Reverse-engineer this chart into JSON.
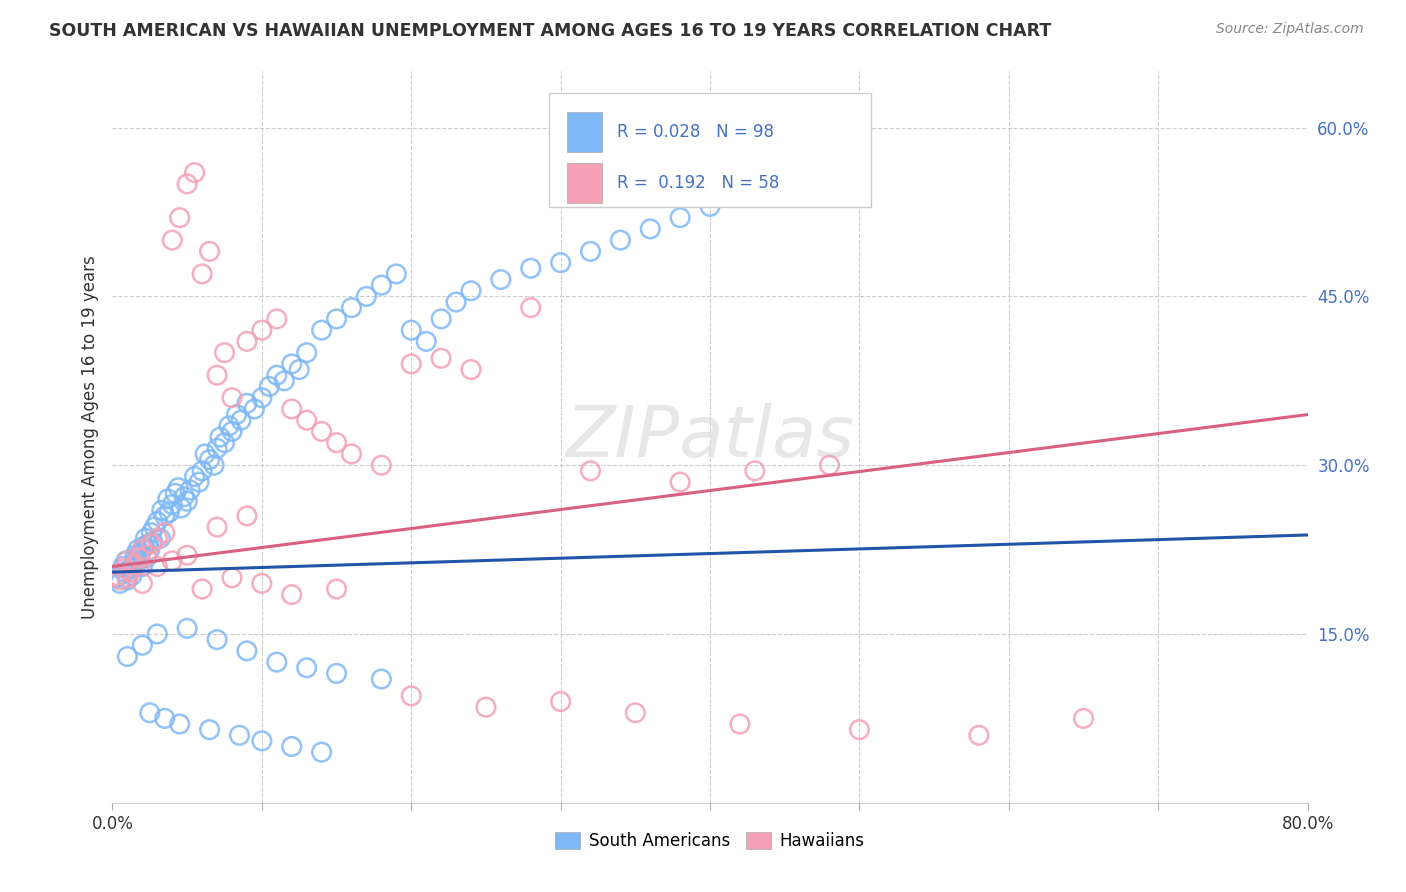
{
  "title": "SOUTH AMERICAN VS HAWAIIAN UNEMPLOYMENT AMONG AGES 16 TO 19 YEARS CORRELATION CHART",
  "source": "Source: ZipAtlas.com",
  "ylabel": "Unemployment Among Ages 16 to 19 years",
  "xlim": [
    0.0,
    0.8
  ],
  "ylim": [
    0.0,
    0.65
  ],
  "ytick_vals": [
    0.15,
    0.3,
    0.45,
    0.6
  ],
  "ytick_labels": [
    "15.0%",
    "30.0%",
    "45.0%",
    "60.0%"
  ],
  "R_blue": 0.028,
  "N_blue": 98,
  "R_pink": 0.192,
  "N_pink": 58,
  "blue_color": "#7EB8F7",
  "pink_color": "#F4A0B5",
  "blue_line_color": "#2255AA",
  "pink_line_color": "#D96080",
  "legend_label_blue": "South Americans",
  "legend_label_pink": "Hawaiians",
  "watermark": "ZIPatlas",
  "background_color": "#FFFFFF",
  "blue_line_x0": 0.0,
  "blue_line_y0": 0.205,
  "blue_line_x1": 0.8,
  "blue_line_y1": 0.238,
  "pink_line_x0": 0.0,
  "pink_line_y0": 0.21,
  "pink_line_x1": 0.8,
  "pink_line_y1": 0.345,
  "sa_x": [
    0.003,
    0.005,
    0.007,
    0.008,
    0.009,
    0.01,
    0.012,
    0.013,
    0.014,
    0.015,
    0.016,
    0.017,
    0.018,
    0.019,
    0.02,
    0.021,
    0.022,
    0.023,
    0.024,
    0.025,
    0.026,
    0.027,
    0.028,
    0.03,
    0.032,
    0.033,
    0.035,
    0.037,
    0.038,
    0.04,
    0.042,
    0.044,
    0.046,
    0.048,
    0.05,
    0.052,
    0.055,
    0.058,
    0.06,
    0.062,
    0.065,
    0.068,
    0.07,
    0.072,
    0.075,
    0.078,
    0.08,
    0.083,
    0.086,
    0.09,
    0.095,
    0.1,
    0.105,
    0.11,
    0.115,
    0.12,
    0.125,
    0.13,
    0.14,
    0.15,
    0.16,
    0.17,
    0.18,
    0.19,
    0.2,
    0.21,
    0.22,
    0.23,
    0.24,
    0.26,
    0.28,
    0.3,
    0.32,
    0.34,
    0.36,
    0.38,
    0.4,
    0.43,
    0.46,
    0.49,
    0.01,
    0.02,
    0.03,
    0.05,
    0.07,
    0.09,
    0.11,
    0.13,
    0.15,
    0.18,
    0.025,
    0.035,
    0.045,
    0.065,
    0.085,
    0.1,
    0.12,
    0.14
  ],
  "sa_y": [
    0.2,
    0.195,
    0.21,
    0.205,
    0.215,
    0.198,
    0.208,
    0.202,
    0.212,
    0.22,
    0.218,
    0.225,
    0.215,
    0.222,
    0.21,
    0.228,
    0.235,
    0.218,
    0.23,
    0.225,
    0.24,
    0.232,
    0.245,
    0.25,
    0.235,
    0.26,
    0.255,
    0.27,
    0.258,
    0.265,
    0.275,
    0.28,
    0.262,
    0.272,
    0.268,
    0.278,
    0.29,
    0.285,
    0.295,
    0.31,
    0.305,
    0.3,
    0.315,
    0.325,
    0.32,
    0.335,
    0.33,
    0.345,
    0.34,
    0.355,
    0.35,
    0.36,
    0.37,
    0.38,
    0.375,
    0.39,
    0.385,
    0.4,
    0.42,
    0.43,
    0.44,
    0.45,
    0.46,
    0.47,
    0.42,
    0.41,
    0.43,
    0.445,
    0.455,
    0.465,
    0.475,
    0.48,
    0.49,
    0.5,
    0.51,
    0.52,
    0.53,
    0.545,
    0.555,
    0.565,
    0.13,
    0.14,
    0.15,
    0.155,
    0.145,
    0.135,
    0.125,
    0.12,
    0.115,
    0.11,
    0.08,
    0.075,
    0.07,
    0.065,
    0.06,
    0.055,
    0.05,
    0.045
  ],
  "hw_x": [
    0.003,
    0.005,
    0.008,
    0.01,
    0.012,
    0.015,
    0.018,
    0.02,
    0.023,
    0.026,
    0.03,
    0.035,
    0.04,
    0.045,
    0.05,
    0.055,
    0.06,
    0.065,
    0.07,
    0.075,
    0.08,
    0.09,
    0.1,
    0.11,
    0.12,
    0.13,
    0.14,
    0.15,
    0.16,
    0.18,
    0.2,
    0.22,
    0.24,
    0.28,
    0.32,
    0.38,
    0.43,
    0.48,
    0.01,
    0.02,
    0.03,
    0.04,
    0.05,
    0.06,
    0.08,
    0.1,
    0.12,
    0.15,
    0.2,
    0.25,
    0.3,
    0.35,
    0.42,
    0.5,
    0.58,
    0.65,
    0.07,
    0.09
  ],
  "hw_y": [
    0.202,
    0.198,
    0.208,
    0.215,
    0.205,
    0.212,
    0.218,
    0.225,
    0.22,
    0.23,
    0.235,
    0.24,
    0.5,
    0.52,
    0.55,
    0.56,
    0.47,
    0.49,
    0.38,
    0.4,
    0.36,
    0.41,
    0.42,
    0.43,
    0.35,
    0.34,
    0.33,
    0.32,
    0.31,
    0.3,
    0.39,
    0.395,
    0.385,
    0.44,
    0.295,
    0.285,
    0.295,
    0.3,
    0.2,
    0.195,
    0.21,
    0.215,
    0.22,
    0.19,
    0.2,
    0.195,
    0.185,
    0.19,
    0.095,
    0.085,
    0.09,
    0.08,
    0.07,
    0.065,
    0.06,
    0.075,
    0.245,
    0.255
  ]
}
